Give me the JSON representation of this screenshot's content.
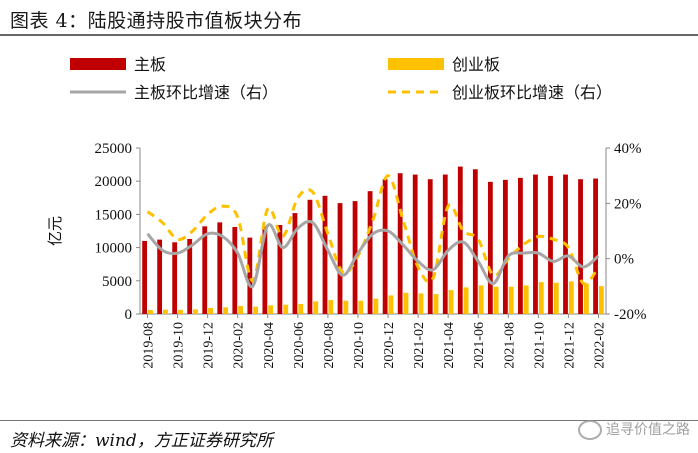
{
  "title": "图表 4：陆股通持股市值板块分布",
  "source": "资料来源：wind，方正证券研究所",
  "watermark": "追寻价值之路",
  "chart_data": {
    "type": "bar",
    "ylabel_left": "亿元",
    "y_left": {
      "min": 0,
      "max": 25000,
      "ticks": [
        0,
        5000,
        10000,
        15000,
        20000,
        25000
      ]
    },
    "y_right": {
      "min": -20,
      "max": 40,
      "ticks": [
        "-20%",
        "0%",
        "20%",
        "40%"
      ],
      "tick_values": [
        -20,
        0,
        20,
        40
      ]
    },
    "categories": [
      "2019-08",
      "2019-09",
      "2019-10",
      "2019-11",
      "2019-12",
      "2020-01",
      "2020-02",
      "2020-03",
      "2020-04",
      "2020-05",
      "2020-06",
      "2020-07",
      "2020-08",
      "2020-09",
      "2020-10",
      "2020-11",
      "2020-12",
      "2021-01",
      "2021-02",
      "2021-03",
      "2021-04",
      "2021-05",
      "2021-06",
      "2021-07",
      "2021-08",
      "2021-09",
      "2021-10",
      "2021-11",
      "2021-12",
      "2022-01",
      "2022-02"
    ],
    "tick_labels": [
      "2019-08",
      "2019-10",
      "2019-12",
      "2020-02",
      "2020-04",
      "2020-06",
      "2020-08",
      "2020-10",
      "2020-12",
      "2021-02",
      "2021-04",
      "2021-06",
      "2021-08",
      "2021-10",
      "2021-12",
      "2022-02"
    ],
    "legend": [
      "主板",
      "创业板",
      "主板环比增速（右）",
      "创业板环比增速（右）"
    ],
    "colors": {
      "main_bar": "#C00000",
      "gem_bar": "#FFC000",
      "main_line": "#A6A6A6",
      "gem_line": "#FFC000"
    },
    "series": [
      {
        "name": "主板",
        "type": "bar",
        "axis": "left",
        "values": [
          11000,
          11200,
          10800,
          11300,
          13200,
          13800,
          13100,
          11500,
          13200,
          13400,
          15200,
          17200,
          17800,
          16700,
          17000,
          18500,
          20300,
          21200,
          21000,
          20300,
          21000,
          22200,
          21800,
          19900,
          20200,
          20500,
          21000,
          20800,
          21000,
          20300,
          20400
        ]
      },
      {
        "name": "创业板",
        "type": "bar",
        "axis": "left",
        "values": [
          600,
          650,
          620,
          700,
          900,
          1000,
          1200,
          1100,
          1300,
          1400,
          1500,
          1900,
          2100,
          2000,
          2000,
          2300,
          2800,
          3200,
          3100,
          3000,
          3600,
          4000,
          4300,
          4100,
          4100,
          4300,
          4800,
          4700,
          4900,
          4600,
          4200
        ]
      },
      {
        "name": "主板环比增速（右）",
        "type": "line",
        "axis": "right",
        "values": [
          9,
          3,
          2,
          5,
          9,
          8,
          2,
          -10,
          12,
          4,
          11,
          13,
          3,
          -6,
          2,
          9,
          10,
          5,
          -1,
          -4,
          3,
          6,
          -1,
          -9,
          1,
          2,
          2,
          -1,
          1,
          -3,
          1
        ]
      },
      {
        "name": "创业板环比增速（右）",
        "type": "line",
        "axis": "right",
        "values": [
          17,
          13,
          7,
          10,
          16,
          19,
          15,
          -8,
          18,
          8,
          22,
          24,
          9,
          -5,
          1,
          14,
          30,
          14,
          -3,
          -7,
          19,
          10,
          7,
          -6,
          0,
          5,
          8,
          7,
          4,
          -9,
          -3
        ]
      }
    ]
  }
}
